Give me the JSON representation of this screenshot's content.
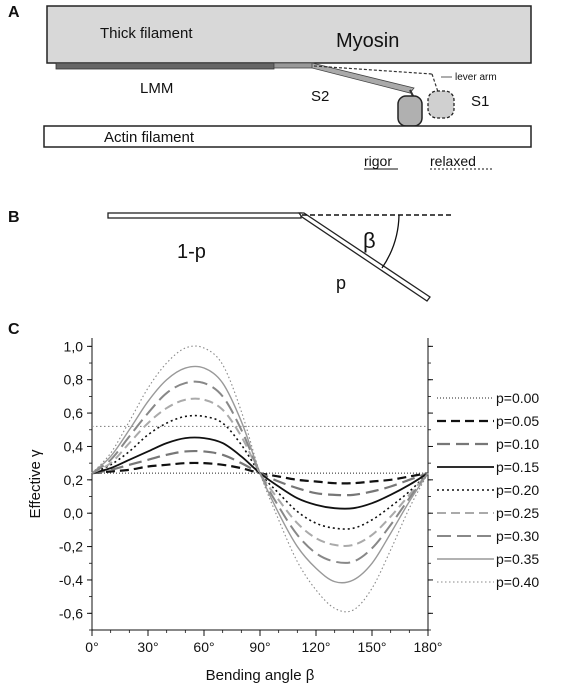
{
  "panel_a": {
    "label": "A",
    "thick_filament": "Thick filament",
    "myosin": "Myosin",
    "lmm": "LMM",
    "s2": "S2",
    "lever_arm": "lever arm",
    "s1": "S1",
    "actin_filament": "Actin filament",
    "rigor": "rigor",
    "relaxed": "relaxed"
  },
  "panel_b": {
    "label": "B",
    "segment_1": "1-p",
    "segment_2": "p",
    "angle": "β"
  },
  "panel_c": {
    "label": "C"
  },
  "chart_data": {
    "type": "line",
    "xlabel": "Bending angle β",
    "ylabel": "Effective γ",
    "x_unit": "degrees",
    "xlim": [
      0,
      180
    ],
    "ylim": [
      -0.7,
      1.05
    ],
    "x_ticks": [
      0,
      30,
      60,
      90,
      120,
      150,
      180
    ],
    "x_tick_labels": [
      "0°",
      "30°",
      "60°",
      "90°",
      "120°",
      "150°",
      "180°"
    ],
    "y_ticks": [
      1.0,
      0.8,
      0.6,
      0.4,
      0.2,
      0.0,
      -0.2,
      -0.4,
      -0.6
    ],
    "y_tick_labels": [
      "1,0",
      "0,8",
      "0,6",
      "0,4",
      "0,2",
      "0,0",
      "-0,2",
      "-0,4",
      "-0,6"
    ],
    "grid": false,
    "legend_position": "right",
    "x": [
      0,
      10,
      20,
      30,
      40,
      50,
      60,
      70,
      80,
      90,
      100,
      110,
      120,
      130,
      140,
      150,
      160,
      170,
      180
    ],
    "series": [
      {
        "name": "p=0.00",
        "style": "dotted-fine",
        "color": "#222222",
        "values": [
          0.24,
          0.24,
          0.24,
          0.24,
          0.24,
          0.24,
          0.24,
          0.24,
          0.24,
          0.24,
          0.24,
          0.24,
          0.24,
          0.24,
          0.24,
          0.24,
          0.24,
          0.24,
          0.24
        ]
      },
      {
        "name": "p=0.05",
        "style": "dash-black",
        "color": "#111111",
        "values": [
          0.24,
          0.25,
          0.26,
          0.28,
          0.29,
          0.3,
          0.3,
          0.29,
          0.27,
          0.24,
          0.22,
          0.2,
          0.19,
          0.18,
          0.18,
          0.19,
          0.2,
          0.22,
          0.24
        ]
      },
      {
        "name": "p=0.10",
        "style": "dash-gray",
        "color": "#777777",
        "values": [
          0.24,
          0.26,
          0.29,
          0.32,
          0.35,
          0.37,
          0.37,
          0.35,
          0.3,
          0.24,
          0.19,
          0.15,
          0.12,
          0.11,
          0.11,
          0.13,
          0.16,
          0.2,
          0.24
        ]
      },
      {
        "name": "p=0.15",
        "style": "solid-black",
        "color": "#111111",
        "values": [
          0.24,
          0.27,
          0.32,
          0.37,
          0.42,
          0.45,
          0.45,
          0.42,
          0.34,
          0.24,
          0.16,
          0.09,
          0.05,
          0.03,
          0.03,
          0.06,
          0.11,
          0.17,
          0.24
        ]
      },
      {
        "name": "p=0.20",
        "style": "dotted-black",
        "color": "#111111",
        "values": [
          0.24,
          0.29,
          0.37,
          0.47,
          0.54,
          0.58,
          0.58,
          0.54,
          0.41,
          0.24,
          0.12,
          0.01,
          -0.06,
          -0.09,
          -0.09,
          -0.04,
          0.04,
          0.13,
          0.24
        ]
      },
      {
        "name": "p=0.25",
        "style": "dash-lightgray",
        "color": "#aaaaaa",
        "values": [
          0.24,
          0.3,
          0.42,
          0.54,
          0.63,
          0.68,
          0.68,
          0.62,
          0.46,
          0.24,
          0.08,
          -0.06,
          -0.15,
          -0.19,
          -0.19,
          -0.13,
          -0.02,
          0.11,
          0.24
        ]
      },
      {
        "name": "p=0.30",
        "style": "longdash-gray",
        "color": "#888888",
        "values": [
          0.24,
          0.32,
          0.46,
          0.6,
          0.72,
          0.78,
          0.78,
          0.7,
          0.5,
          0.24,
          0.04,
          -0.13,
          -0.24,
          -0.29,
          -0.29,
          -0.21,
          -0.07,
          0.09,
          0.24
        ]
      },
      {
        "name": "p=0.35",
        "style": "solid-gray",
        "color": "#999999",
        "values": [
          0.24,
          0.34,
          0.5,
          0.67,
          0.8,
          0.87,
          0.87,
          0.78,
          0.55,
          0.24,
          0.0,
          -0.2,
          -0.33,
          -0.41,
          -0.4,
          -0.3,
          -0.12,
          0.07,
          0.24
        ]
      },
      {
        "name": "p=0.40",
        "style": "dotted-gray",
        "color": "#888888",
        "values": [
          0.24,
          0.36,
          0.55,
          0.75,
          0.9,
          0.99,
          0.99,
          0.89,
          0.61,
          0.24,
          -0.04,
          -0.29,
          -0.46,
          -0.57,
          -0.58,
          -0.45,
          -0.22,
          0.03,
          0.24
        ]
      }
    ],
    "reference_lines": [
      {
        "y": 0.52,
        "style": "dotted-gray"
      }
    ]
  }
}
